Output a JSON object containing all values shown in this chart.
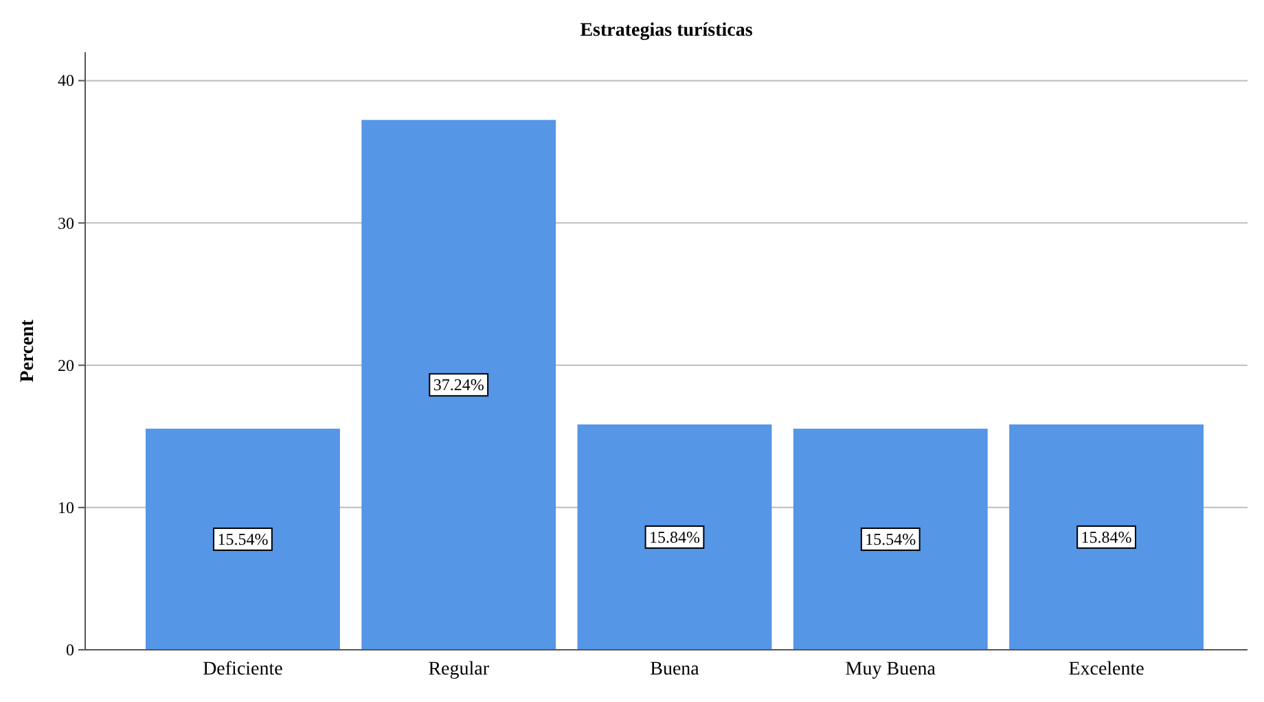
{
  "chart_data": {
    "type": "bar",
    "title": "Estrategias turísticas",
    "ylabel": "Percent",
    "categories": [
      "Deficiente",
      "Regular",
      "Buena",
      "Muy Buena",
      "Excelente"
    ],
    "values": [
      15.54,
      37.24,
      15.84,
      15.54,
      15.84
    ],
    "value_labels": [
      "15.54%",
      "37.24%",
      "15.84%",
      "15.54%",
      "15.84%"
    ],
    "color": "#5596e6",
    "ylim": [
      0,
      42
    ],
    "yticks": [
      0,
      10,
      20,
      30,
      40
    ],
    "grid": "y"
  }
}
